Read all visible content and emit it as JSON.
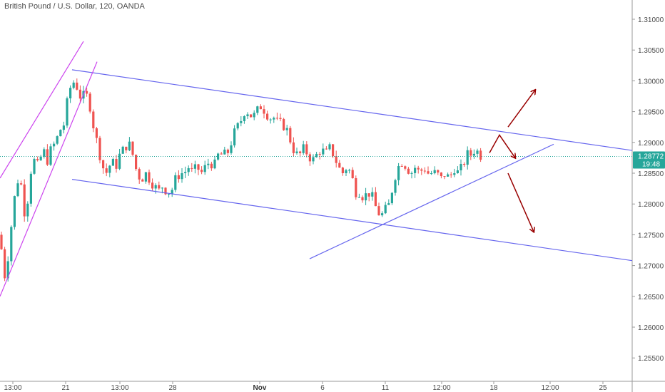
{
  "header": {
    "title": "British Pound / U.S. Dollar, 120, OANDA"
  },
  "chart_data": {
    "type": "candlestick",
    "symbol": "GBPUSD",
    "interval": "120",
    "source": "OANDA",
    "ylim": [
      1.25,
      1.315
    ],
    "y_ticks": [
      "1.31000",
      "1.30500",
      "1.30000",
      "1.29500",
      "1.29000",
      "1.28500",
      "1.28000",
      "1.27500",
      "1.27000",
      "1.26500",
      "1.26000",
      "1.25500"
    ],
    "y_tick_values": [
      1.31,
      1.305,
      1.3,
      1.295,
      1.29,
      1.285,
      1.28,
      1.275,
      1.27,
      1.265,
      1.26,
      1.255
    ],
    "x_ticks": [
      "13:00",
      "21",
      "13:00",
      "28",
      "Nov",
      "6",
      "11",
      "12:00",
      "18",
      "12:00",
      "25"
    ],
    "x_tick_bold": [
      "Nov"
    ],
    "current_price": "1.28772",
    "current_price_value": 1.28772,
    "countdown": "19:48",
    "colors": {
      "up": "#26a69a",
      "down": "#ef5350",
      "channel": "#6666ee",
      "rising_channel": "#cc44ee",
      "arrows": "#990000",
      "price_badge": "#26a69a"
    },
    "price_path": [
      [
        0,
        1.275
      ],
      [
        6,
        1.268
      ],
      [
        12,
        1.272
      ],
      [
        18,
        1.279
      ],
      [
        24,
        1.284
      ],
      [
        30,
        1.283
      ],
      [
        36,
        1.277
      ],
      [
        42,
        1.285
      ],
      [
        48,
        1.287
      ],
      [
        54,
        1.286
      ],
      [
        60,
        1.289
      ],
      [
        66,
        1.287
      ],
      [
        72,
        1.289
      ],
      [
        78,
        1.29
      ],
      [
        84,
        1.292
      ],
      [
        90,
        1.293
      ],
      [
        96,
        1.298
      ],
      [
        102,
        1.3
      ],
      [
        108,
        1.299
      ],
      [
        114,
        1.297
      ],
      [
        120,
        1.298
      ],
      [
        126,
        1.296
      ],
      [
        132,
        1.292
      ],
      [
        138,
        1.289
      ],
      [
        144,
        1.286
      ],
      [
        150,
        1.285
      ],
      [
        156,
        1.287
      ],
      [
        162,
        1.286
      ],
      [
        168,
        1.288
      ],
      [
        174,
        1.289
      ],
      [
        180,
        1.29
      ],
      [
        186,
        1.288
      ],
      [
        192,
        1.285
      ],
      [
        198,
        1.284
      ],
      [
        204,
        1.285
      ],
      [
        210,
        1.284
      ],
      [
        216,
        1.283
      ],
      [
        222,
        1.282
      ],
      [
        228,
        1.283
      ],
      [
        234,
        1.282
      ],
      [
        240,
        1.282
      ],
      [
        246,
        1.284
      ],
      [
        252,
        1.285
      ],
      [
        258,
        1.285
      ],
      [
        264,
        1.286
      ],
      [
        270,
        1.285
      ],
      [
        276,
        1.286
      ],
      [
        282,
        1.285
      ],
      [
        288,
        1.286
      ],
      [
        294,
        1.287
      ],
      [
        300,
        1.286
      ],
      [
        306,
        1.288
      ],
      [
        312,
        1.288
      ],
      [
        318,
        1.288
      ],
      [
        324,
        1.29
      ],
      [
        330,
        1.292
      ],
      [
        336,
        1.293
      ],
      [
        342,
        1.295
      ],
      [
        348,
        1.295
      ],
      [
        354,
        1.294
      ],
      [
        360,
        1.295
      ],
      [
        366,
        1.296
      ],
      [
        372,
        1.295
      ],
      [
        378,
        1.294
      ],
      [
        384,
        1.294
      ],
      [
        390,
        1.293
      ],
      [
        396,
        1.293
      ],
      [
        402,
        1.292
      ],
      [
        408,
        1.29
      ],
      [
        414,
        1.288
      ],
      [
        420,
        1.288
      ],
      [
        426,
        1.289
      ],
      [
        432,
        1.288
      ],
      [
        438,
        1.287
      ],
      [
        444,
        1.288
      ],
      [
        450,
        1.289
      ],
      [
        456,
        1.288
      ],
      [
        462,
        1.289
      ],
      [
        468,
        1.288
      ],
      [
        474,
        1.286
      ],
      [
        480,
        1.285
      ],
      [
        486,
        1.286
      ],
      [
        492,
        1.285
      ],
      [
        498,
        1.282
      ],
      [
        504,
        1.282
      ],
      [
        510,
        1.281
      ],
      [
        516,
        1.282
      ],
      [
        522,
        1.281
      ],
      [
        528,
        1.279
      ],
      [
        534,
        1.278
      ],
      [
        540,
        1.279
      ],
      [
        546,
        1.28
      ],
      [
        552,
        1.284
      ],
      [
        558,
        1.286
      ],
      [
        564,
        1.287
      ],
      [
        570,
        1.286
      ],
      [
        576,
        1.285
      ],
      [
        582,
        1.286
      ],
      [
        588,
        1.285
      ],
      [
        594,
        1.286
      ],
      [
        600,
        1.285
      ],
      [
        606,
        1.285
      ],
      [
        612,
        1.285
      ],
      [
        618,
        1.284
      ],
      [
        624,
        1.285
      ],
      [
        630,
        1.284
      ],
      [
        636,
        1.286
      ],
      [
        642,
        1.285
      ],
      [
        648,
        1.286
      ],
      [
        654,
        1.288
      ],
      [
        660,
        1.288
      ],
      [
        666,
        1.289
      ],
      [
        672,
        1.288
      ],
      [
        678,
        1.2877
      ]
    ],
    "trend_lines": [
      {
        "name": "upper-channel-line",
        "color": "channel",
        "points": [
          [
            101,
            1.3018
          ],
          [
            886,
            1.2887
          ]
        ]
      },
      {
        "name": "lower-channel-line",
        "color": "channel",
        "points": [
          [
            101,
            1.284
          ],
          [
            886,
            1.2708
          ]
        ]
      },
      {
        "name": "ascending-support-line",
        "color": "channel",
        "points": [
          [
            434,
            1.2711
          ],
          [
            776,
            1.2897
          ]
        ]
      },
      {
        "name": "rising-channel-upper-line",
        "color": "rising_channel",
        "points": [
          [
            0,
            1.2842
          ],
          [
            117,
            1.3064
          ]
        ]
      },
      {
        "name": "rising-channel-lower-line",
        "color": "rising_channel",
        "points": [
          [
            0,
            1.265
          ],
          [
            136,
            1.3031
          ]
        ]
      }
    ],
    "arrows": [
      {
        "name": "breakout-up-arrow",
        "color": "arrows",
        "points": [
          [
            712,
            1.2925
          ],
          [
            750,
            1.2985
          ]
        ]
      },
      {
        "name": "breakdown-down-arrow",
        "color": "arrows",
        "points": [
          [
            712,
            1.285
          ],
          [
            748,
            1.2755
          ]
        ]
      },
      {
        "name": "zigzag-scenario-arrow",
        "color": "arrows",
        "points": [
          [
            686,
            1.2883
          ],
          [
            700,
            1.2912
          ],
          [
            722,
            1.2875
          ]
        ]
      }
    ]
  }
}
